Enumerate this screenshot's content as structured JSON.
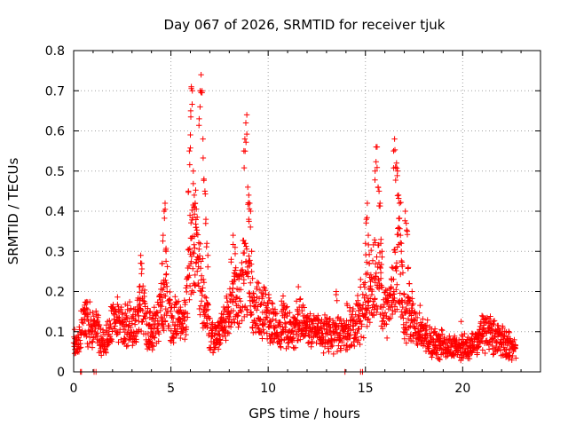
{
  "chart_data": {
    "type": "scatter",
    "title": "Day 067 of 2026, SRMTID for receiver tjuk",
    "xlabel": "GPS time / hours",
    "ylabel": "SRMTID / TECUs",
    "xlim": [
      0,
      24
    ],
    "ylim": [
      0,
      0.8
    ],
    "x_ticks": [
      0,
      5,
      10,
      15,
      20
    ],
    "x_tick_labels": [
      "0",
      "5",
      "10",
      "15",
      "20"
    ],
    "y_ticks": [
      0,
      0.1,
      0.2,
      0.3,
      0.4,
      0.5,
      0.6,
      0.7,
      0.8
    ],
    "y_tick_labels": [
      "0",
      "0.1",
      "0.2",
      "0.3",
      "0.4",
      "0.5",
      "0.6",
      "0.7",
      "0.8"
    ],
    "grid": true,
    "series": [
      {
        "name": "SRMTID",
        "color": "#ff0000",
        "marker": "plus",
        "profile": [
          [
            0.0,
            0.08
          ],
          [
            0.25,
            0.07
          ],
          [
            0.5,
            0.13
          ],
          [
            0.75,
            0.12
          ],
          [
            1.0,
            0.11
          ],
          [
            1.25,
            0.1
          ],
          [
            1.5,
            0.07
          ],
          [
            1.75,
            0.09
          ],
          [
            2.0,
            0.12
          ],
          [
            2.25,
            0.13
          ],
          [
            2.5,
            0.11
          ],
          [
            2.75,
            0.12
          ],
          [
            3.0,
            0.11
          ],
          [
            3.25,
            0.12
          ],
          [
            3.5,
            0.17
          ],
          [
            3.75,
            0.11
          ],
          [
            4.0,
            0.1
          ],
          [
            4.25,
            0.12
          ],
          [
            4.5,
            0.15
          ],
          [
            4.75,
            0.22
          ],
          [
            5.0,
            0.12
          ],
          [
            5.25,
            0.13
          ],
          [
            5.5,
            0.12
          ],
          [
            5.75,
            0.14
          ],
          [
            6.0,
            0.3
          ],
          [
            6.25,
            0.33
          ],
          [
            6.5,
            0.22
          ],
          [
            6.75,
            0.18
          ],
          [
            7.0,
            0.1
          ],
          [
            7.25,
            0.08
          ],
          [
            7.5,
            0.1
          ],
          [
            7.75,
            0.13
          ],
          [
            8.0,
            0.15
          ],
          [
            8.25,
            0.18
          ],
          [
            8.5,
            0.19
          ],
          [
            8.75,
            0.24
          ],
          [
            9.0,
            0.22
          ],
          [
            9.25,
            0.17
          ],
          [
            9.5,
            0.15
          ],
          [
            9.75,
            0.15
          ],
          [
            10.0,
            0.14
          ],
          [
            10.25,
            0.12
          ],
          [
            10.5,
            0.11
          ],
          [
            10.75,
            0.12
          ],
          [
            11.0,
            0.11
          ],
          [
            11.25,
            0.1
          ],
          [
            11.5,
            0.12
          ],
          [
            11.75,
            0.13
          ],
          [
            12.0,
            0.11
          ],
          [
            12.25,
            0.1
          ],
          [
            12.5,
            0.1
          ],
          [
            12.75,
            0.1
          ],
          [
            13.0,
            0.1
          ],
          [
            13.25,
            0.09
          ],
          [
            13.5,
            0.1
          ],
          [
            13.75,
            0.1
          ],
          [
            14.0,
            0.09
          ],
          [
            14.25,
            0.1
          ],
          [
            14.5,
            0.12
          ],
          [
            14.75,
            0.12
          ],
          [
            15.0,
            0.18
          ],
          [
            15.25,
            0.22
          ],
          [
            15.5,
            0.24
          ],
          [
            15.75,
            0.22
          ],
          [
            16.0,
            0.14
          ],
          [
            16.25,
            0.15
          ],
          [
            16.5,
            0.25
          ],
          [
            16.75,
            0.28
          ],
          [
            17.0,
            0.14
          ],
          [
            17.25,
            0.13
          ],
          [
            17.5,
            0.12
          ],
          [
            17.75,
            0.1
          ],
          [
            18.0,
            0.09
          ],
          [
            18.25,
            0.08
          ],
          [
            18.5,
            0.08
          ],
          [
            18.75,
            0.07
          ],
          [
            19.0,
            0.07
          ],
          [
            19.25,
            0.06
          ],
          [
            19.5,
            0.06
          ],
          [
            19.75,
            0.06
          ],
          [
            20.0,
            0.06
          ],
          [
            20.25,
            0.06
          ],
          [
            20.5,
            0.06
          ],
          [
            20.75,
            0.08
          ],
          [
            21.0,
            0.09
          ],
          [
            21.25,
            0.1
          ],
          [
            21.5,
            0.09
          ],
          [
            21.75,
            0.08
          ],
          [
            22.0,
            0.08
          ],
          [
            22.25,
            0.07
          ],
          [
            22.5,
            0.06
          ],
          [
            22.75,
            0.05
          ]
        ],
        "spikes": [
          [
            3.45,
            0.29
          ],
          [
            3.5,
            0.27
          ],
          [
            4.5,
            0.22
          ],
          [
            4.55,
            0.27
          ],
          [
            4.6,
            0.34
          ],
          [
            4.65,
            0.4
          ],
          [
            4.7,
            0.42
          ],
          [
            4.75,
            0.3
          ],
          [
            5.9,
            0.45
          ],
          [
            5.95,
            0.55
          ],
          [
            6.0,
            0.59
          ],
          [
            6.02,
            0.65
          ],
          [
            6.05,
            0.71
          ],
          [
            6.1,
            0.7
          ],
          [
            6.15,
            0.5
          ],
          [
            6.2,
            0.44
          ],
          [
            6.25,
            0.42
          ],
          [
            6.3,
            0.36
          ],
          [
            6.45,
            0.63
          ],
          [
            6.5,
            0.7
          ],
          [
            6.55,
            0.74
          ],
          [
            6.6,
            0.7
          ],
          [
            6.65,
            0.58
          ],
          [
            6.7,
            0.48
          ],
          [
            6.75,
            0.45
          ],
          [
            6.8,
            0.38
          ],
          [
            6.85,
            0.32
          ],
          [
            6.9,
            0.29
          ],
          [
            8.1,
            0.28
          ],
          [
            8.2,
            0.34
          ],
          [
            8.3,
            0.31
          ],
          [
            8.75,
            0.55
          ],
          [
            8.8,
            0.58
          ],
          [
            8.85,
            0.62
          ],
          [
            8.9,
            0.64
          ],
          [
            8.95,
            0.46
          ],
          [
            9.0,
            0.44
          ],
          [
            9.05,
            0.42
          ],
          [
            9.1,
            0.4
          ],
          [
            9.0,
            0.38
          ],
          [
            9.15,
            0.3
          ],
          [
            13.5,
            0.2
          ],
          [
            14.05,
            0.17
          ],
          [
            14.2,
            0.16
          ],
          [
            14.6,
            0.19
          ],
          [
            14.75,
            0.23
          ],
          [
            15.0,
            0.32
          ],
          [
            15.05,
            0.38
          ],
          [
            15.1,
            0.42
          ],
          [
            15.15,
            0.34
          ],
          [
            15.2,
            0.27
          ],
          [
            15.5,
            0.5
          ],
          [
            15.55,
            0.56
          ],
          [
            15.6,
            0.56
          ],
          [
            15.65,
            0.46
          ],
          [
            15.7,
            0.45
          ],
          [
            15.75,
            0.42
          ],
          [
            15.8,
            0.33
          ],
          [
            15.85,
            0.3
          ],
          [
            16.45,
            0.55
          ],
          [
            16.5,
            0.58
          ],
          [
            16.55,
            0.51
          ],
          [
            16.6,
            0.52
          ],
          [
            16.65,
            0.5
          ],
          [
            16.7,
            0.44
          ],
          [
            16.75,
            0.42
          ],
          [
            16.8,
            0.34
          ],
          [
            16.85,
            0.32
          ],
          [
            17.05,
            0.4
          ],
          [
            17.1,
            0.37
          ],
          [
            17.15,
            0.35
          ],
          [
            17.2,
            0.26
          ],
          [
            17.25,
            0.22
          ],
          [
            17.4,
            0.2
          ]
        ],
        "zeros": [
          0.35,
          0.4,
          1.05,
          1.15,
          13.95,
          14.75,
          14.85
        ]
      }
    ]
  }
}
